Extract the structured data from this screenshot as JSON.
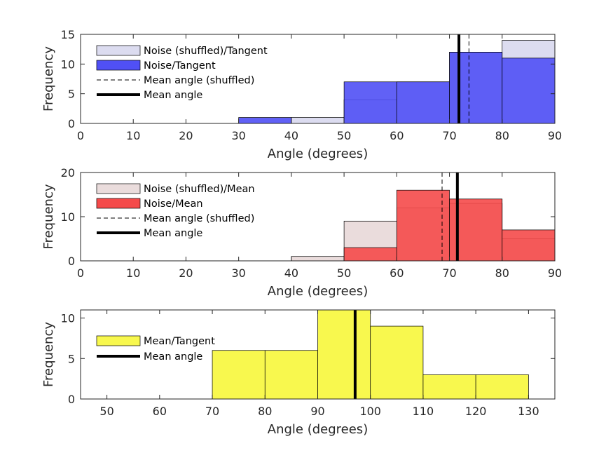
{
  "chart_data": [
    {
      "type": "bar",
      "xlabel": "Angle (degrees)",
      "ylabel": "Frequency",
      "xlim": [
        0,
        90
      ],
      "ylim": [
        0,
        15
      ],
      "xticks": [
        "0",
        "10",
        "20",
        "30",
        "40",
        "50",
        "60",
        "70",
        "80",
        "90"
      ],
      "yticks": [
        "0",
        "5",
        "10",
        "15"
      ],
      "bin_edges": [
        0,
        10,
        20,
        30,
        40,
        50,
        60,
        70,
        80,
        90
      ],
      "series": [
        {
          "name": "Noise (shuffled)/Tangent",
          "color": "#dcdcf0",
          "values": [
            0,
            0,
            0,
            0,
            1,
            4,
            7,
            12,
            14
          ]
        },
        {
          "name": "Noise/Tangent",
          "color": "#5050f5",
          "values": [
            0,
            0,
            0,
            1,
            0,
            7,
            7,
            12,
            11
          ]
        }
      ],
      "lines": [
        {
          "name": "Mean angle (shuffled)",
          "x": 73.7,
          "style": "dashed"
        },
        {
          "name": "Mean angle",
          "x": 71.8,
          "style": "solid"
        }
      ],
      "legend": "top-left"
    },
    {
      "type": "bar",
      "xlabel": "Angle (degrees)",
      "ylabel": "Frequency",
      "xlim": [
        0,
        90
      ],
      "ylim": [
        0,
        20
      ],
      "xticks": [
        "0",
        "10",
        "20",
        "30",
        "40",
        "50",
        "60",
        "70",
        "80",
        "90"
      ],
      "yticks": [
        "0",
        "10",
        "20"
      ],
      "bin_edges": [
        0,
        10,
        20,
        30,
        40,
        50,
        60,
        70,
        80,
        90
      ],
      "series": [
        {
          "name": "Noise (shuffled)/Mean",
          "color": "#eadcdc",
          "values": [
            0,
            0,
            0,
            0,
            1,
            9,
            12,
            13,
            5
          ]
        },
        {
          "name": "Noise/Mean",
          "color": "#f54a4a",
          "values": [
            0,
            0,
            0,
            0,
            0,
            3,
            16,
            14,
            7
          ]
        }
      ],
      "lines": [
        {
          "name": "Mean angle (shuffled)",
          "x": 68.6,
          "style": "dashed"
        },
        {
          "name": "Mean angle",
          "x": 71.5,
          "style": "solid"
        }
      ],
      "legend": "top-left"
    },
    {
      "type": "bar",
      "xlabel": "Angle (degrees)",
      "ylabel": "Frequency",
      "xlim": [
        45,
        135
      ],
      "ylim": [
        0,
        11
      ],
      "xticks": [
        "50",
        "60",
        "70",
        "80",
        "90",
        "100",
        "110",
        "120",
        "130"
      ],
      "yticks": [
        "0",
        "5",
        "10"
      ],
      "bin_edges": [
        70,
        80,
        90,
        100,
        110,
        120,
        130
      ],
      "series": [
        {
          "name": "Mean/Tangent",
          "color": "#f8f84e",
          "values": [
            6,
            6,
            11,
            9,
            3,
            3
          ]
        }
      ],
      "lines": [
        {
          "name": "Mean angle",
          "x": 97.1,
          "style": "solid"
        }
      ],
      "legend": "left"
    }
  ]
}
